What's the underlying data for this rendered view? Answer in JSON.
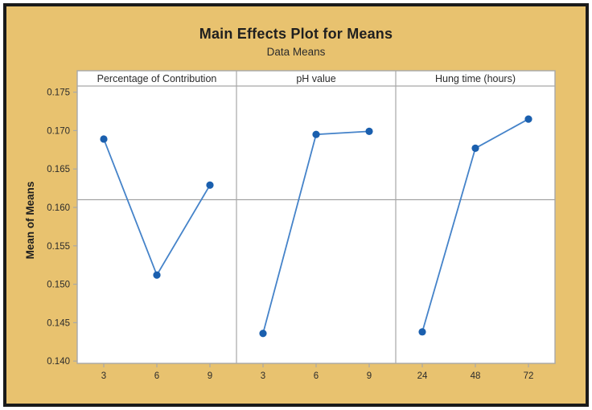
{
  "window": {
    "background_color": "#e8c26f",
    "frame_color": "#1a1a1a"
  },
  "chart_data": {
    "type": "line",
    "title": "Main Effects Plot for Means",
    "subtitle": "Data Means",
    "ylabel": "Mean of Means",
    "ylim": [
      0.1397,
      0.1758
    ],
    "yticks": [
      0.14,
      0.145,
      0.15,
      0.155,
      0.16,
      0.165,
      0.17,
      0.175
    ],
    "ytick_labels": [
      "0.140",
      "0.145",
      "0.150",
      "0.155",
      "0.160",
      "0.165",
      "0.170",
      "0.175"
    ],
    "reference_line": 0.161,
    "grid": false,
    "legend": "none",
    "panels": [
      {
        "label": "Percentage of Contribution",
        "categories": [
          "3",
          "6",
          "9"
        ],
        "values": [
          0.1689,
          0.1512,
          0.1629
        ]
      },
      {
        "label": "pH value",
        "categories": [
          "3",
          "6",
          "9"
        ],
        "values": [
          0.1436,
          0.1695,
          0.1699
        ]
      },
      {
        "label": "Hung time (hours)",
        "categories": [
          "24",
          "48",
          "72"
        ],
        "values": [
          0.1438,
          0.1677,
          0.1715
        ]
      }
    ],
    "colors": {
      "point": "#1a5fae",
      "line": "#4583c9",
      "reference_line": "#9c9c9c",
      "panel_border": "#a8a8a8",
      "plot_background": "#ffffff",
      "text": "#2b2b2b"
    }
  }
}
